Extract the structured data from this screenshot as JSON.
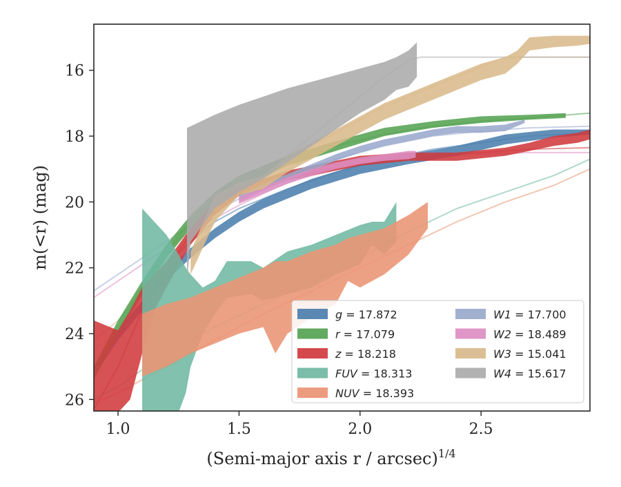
{
  "chart_data": {
    "type": "area",
    "xlabel": "(Semi-major axis r / arcsec)",
    "xlabel_exp": "1/4",
    "ylabel": "m(<r) (mag)",
    "xlim": [
      0.9,
      2.95
    ],
    "ylim": [
      26.35,
      14.6
    ],
    "y_inverted": true,
    "grid": false,
    "legend_position": "lower-right",
    "xticks": [
      1.0,
      1.5,
      2.0,
      2.5
    ],
    "xtick_labels": [
      "1.0",
      "1.5",
      "2.0",
      "2.5"
    ],
    "yticks": [
      16,
      18,
      20,
      22,
      24,
      26
    ],
    "ytick_labels": [
      "16",
      "18",
      "20",
      "22",
      "24",
      "26"
    ],
    "series": [
      {
        "name": "g = 17.872",
        "key": "g",
        "legend_var": "g",
        "legend_val": "17.872",
        "color": "#4c7fae",
        "band": [
          [
            0.9,
            25.3,
            25.0
          ],
          [
            1.0,
            24.2,
            23.9
          ],
          [
            1.1,
            23.3,
            23.0
          ],
          [
            1.2,
            22.4,
            22.1
          ],
          [
            1.3,
            21.7,
            21.4
          ],
          [
            1.4,
            21.1,
            20.8
          ],
          [
            1.5,
            20.6,
            20.3
          ],
          [
            1.6,
            20.2,
            19.9
          ],
          [
            1.8,
            19.6,
            19.3
          ],
          [
            2.0,
            19.15,
            18.85
          ],
          [
            2.2,
            18.85,
            18.55
          ],
          [
            2.4,
            18.6,
            18.3
          ],
          [
            2.6,
            18.25,
            17.95
          ],
          [
            2.8,
            18.05,
            17.8
          ],
          [
            2.95,
            17.95,
            17.8
          ]
        ],
        "model": [
          [
            0.9,
            25.2
          ],
          [
            1.0,
            24.0
          ],
          [
            1.1,
            22.8
          ],
          [
            1.2,
            21.9
          ],
          [
            1.3,
            21.2
          ],
          [
            1.4,
            20.6
          ],
          [
            1.5,
            20.2
          ],
          [
            1.7,
            19.6
          ],
          [
            1.9,
            19.1
          ],
          [
            2.1,
            18.7
          ],
          [
            2.3,
            18.4
          ],
          [
            2.5,
            18.2
          ],
          [
            2.7,
            18.0
          ],
          [
            2.95,
            17.9
          ]
        ]
      },
      {
        "name": "r = 17.079",
        "key": "r",
        "legend_var": "r",
        "legend_val": "17.079",
        "color": "#55a352",
        "band": [
          [
            0.9,
            25.4,
            25.0
          ],
          [
            1.0,
            24.0,
            23.6
          ],
          [
            1.1,
            22.8,
            22.4
          ],
          [
            1.2,
            21.7,
            21.3
          ],
          [
            1.3,
            20.8,
            20.4
          ],
          [
            1.4,
            20.1,
            19.7
          ],
          [
            1.5,
            19.6,
            19.2
          ],
          [
            1.7,
            18.9,
            18.6
          ],
          [
            1.9,
            18.45,
            18.15
          ],
          [
            2.1,
            18.0,
            17.75
          ],
          [
            2.3,
            17.75,
            17.55
          ],
          [
            2.5,
            17.6,
            17.4
          ],
          [
            2.7,
            17.5,
            17.35
          ],
          [
            2.85,
            17.45,
            17.3
          ]
        ],
        "model": [
          [
            0.9,
            25.2
          ],
          [
            1.0,
            23.9
          ],
          [
            1.1,
            22.6
          ],
          [
            1.2,
            21.5
          ],
          [
            1.3,
            20.6
          ],
          [
            1.4,
            19.9
          ],
          [
            1.5,
            19.4
          ],
          [
            1.7,
            18.75
          ],
          [
            1.9,
            18.3
          ],
          [
            2.1,
            17.95
          ],
          [
            2.3,
            17.7
          ],
          [
            2.5,
            17.55
          ],
          [
            2.7,
            17.45
          ],
          [
            2.95,
            17.3
          ]
        ]
      },
      {
        "name": "z = 18.218",
        "key": "z",
        "legend_var": "z",
        "legend_val": "18.218",
        "color": "#d03a3e",
        "band": [
          [
            0.9,
            26.4,
            23.6
          ],
          [
            1.0,
            26.4,
            23.9
          ],
          [
            1.05,
            26.0,
            23.3
          ],
          [
            1.1,
            24.6,
            22.6
          ],
          [
            1.15,
            23.3,
            22.2
          ],
          [
            1.2,
            22.6,
            21.8
          ],
          [
            1.3,
            21.3,
            20.8
          ],
          [
            1.4,
            20.4,
            20.0
          ],
          [
            1.5,
            19.8,
            19.5
          ],
          [
            1.6,
            19.6,
            19.3
          ],
          [
            1.7,
            19.35,
            19.05
          ],
          [
            1.8,
            19.2,
            18.9
          ],
          [
            2.0,
            18.9,
            18.6
          ],
          [
            2.2,
            18.75,
            18.5
          ],
          [
            2.4,
            18.75,
            18.5
          ],
          [
            2.6,
            18.6,
            18.35
          ],
          [
            2.7,
            18.45,
            18.2
          ],
          [
            2.8,
            18.3,
            18.0
          ],
          [
            2.9,
            18.2,
            17.9
          ],
          [
            2.95,
            18.1,
            17.8
          ]
        ],
        "model": [
          [
            0.9,
            26.3
          ],
          [
            1.0,
            25.0
          ],
          [
            1.1,
            23.3
          ],
          [
            1.2,
            22.0
          ],
          [
            1.3,
            21.0
          ],
          [
            1.4,
            20.3
          ],
          [
            1.5,
            19.8
          ],
          [
            1.7,
            19.3
          ],
          [
            1.9,
            18.95
          ],
          [
            2.1,
            18.75
          ],
          [
            2.3,
            18.6
          ],
          [
            2.5,
            18.5
          ],
          [
            2.7,
            18.4
          ],
          [
            2.95,
            18.35
          ]
        ]
      },
      {
        "name": "FUV = 18.313",
        "key": "FUV",
        "legend_var": "FUV",
        "legend_val": "18.313",
        "color": "#6fb8a3",
        "band": [
          [
            1.1,
            26.4,
            20.2
          ],
          [
            1.2,
            26.4,
            21.0
          ],
          [
            1.25,
            26.4,
            21.6
          ],
          [
            1.28,
            25.8,
            22.0
          ],
          [
            1.3,
            25.0,
            22.2
          ],
          [
            1.35,
            24.0,
            22.6
          ],
          [
            1.4,
            23.4,
            22.4
          ],
          [
            1.45,
            22.9,
            21.8
          ],
          [
            1.55,
            22.8,
            21.8
          ],
          [
            1.6,
            23.0,
            22.0
          ],
          [
            1.7,
            22.8,
            21.5
          ],
          [
            1.8,
            22.6,
            21.3
          ],
          [
            1.9,
            22.2,
            21.0
          ],
          [
            2.0,
            21.9,
            20.7
          ],
          [
            2.05,
            21.3,
            20.6
          ],
          [
            2.1,
            21.6,
            20.6
          ],
          [
            2.15,
            21.2,
            20.0
          ]
        ],
        "model": [
          [
            0.9,
            26.0
          ],
          [
            1.0,
            25.6
          ],
          [
            1.2,
            24.6
          ],
          [
            1.4,
            23.8
          ],
          [
            1.6,
            23.1
          ],
          [
            1.8,
            22.4
          ],
          [
            2.0,
            21.7
          ],
          [
            2.2,
            20.9
          ],
          [
            2.4,
            20.2
          ],
          [
            2.6,
            19.7
          ],
          [
            2.8,
            19.2
          ],
          [
            2.95,
            18.7
          ]
        ]
      },
      {
        "name": "NUV = 18.393",
        "key": "NUV",
        "legend_var": "NUV",
        "legend_val": "18.393",
        "color": "#ea9473",
        "band": [
          [
            1.1,
            25.3,
            23.4
          ],
          [
            1.2,
            25.0,
            23.1
          ],
          [
            1.3,
            24.6,
            22.9
          ],
          [
            1.4,
            24.3,
            22.6
          ],
          [
            1.5,
            24.0,
            22.3
          ],
          [
            1.6,
            23.8,
            22.0
          ],
          [
            1.65,
            24.6,
            21.8
          ],
          [
            1.7,
            24.0,
            21.8
          ],
          [
            1.8,
            23.5,
            21.5
          ],
          [
            1.9,
            23.1,
            21.3
          ],
          [
            1.95,
            22.4,
            21.1
          ],
          [
            2.0,
            22.6,
            21.0
          ],
          [
            2.1,
            22.2,
            20.8
          ],
          [
            2.2,
            21.6,
            20.4
          ],
          [
            2.28,
            20.8,
            20.0
          ]
        ],
        "model": [
          [
            0.9,
            26.1
          ],
          [
            1.0,
            25.8
          ],
          [
            1.2,
            25.0
          ],
          [
            1.4,
            24.2
          ],
          [
            1.6,
            23.4
          ],
          [
            1.8,
            22.7
          ],
          [
            2.0,
            22.0
          ],
          [
            2.2,
            21.3
          ],
          [
            2.4,
            20.6
          ],
          [
            2.6,
            20.0
          ],
          [
            2.8,
            19.5
          ],
          [
            2.95,
            19.0
          ]
        ]
      },
      {
        "name": "W1 = 17.700",
        "key": "W1",
        "legend_var": "W1",
        "legend_val": "17.700",
        "color": "#9aa9cc",
        "band": [
          [
            1.5,
            20.0,
            19.8
          ],
          [
            1.6,
            19.65,
            19.45
          ],
          [
            1.7,
            19.35,
            19.15
          ],
          [
            1.8,
            19.05,
            18.85
          ],
          [
            1.9,
            18.75,
            18.55
          ],
          [
            2.0,
            18.5,
            18.3
          ],
          [
            2.1,
            18.3,
            18.1
          ],
          [
            2.2,
            18.15,
            17.95
          ],
          [
            2.3,
            18.0,
            17.8
          ],
          [
            2.4,
            17.9,
            17.7
          ],
          [
            2.5,
            17.9,
            17.7
          ],
          [
            2.6,
            17.85,
            17.65
          ],
          [
            2.68,
            17.6,
            17.5
          ]
        ],
        "model": [
          [
            0.9,
            22.7
          ],
          [
            1.0,
            22.2
          ],
          [
            1.1,
            21.7
          ],
          [
            1.2,
            21.2
          ],
          [
            1.3,
            20.7
          ],
          [
            1.5,
            19.9
          ],
          [
            1.7,
            19.2
          ],
          [
            1.9,
            18.7
          ],
          [
            2.1,
            18.3
          ],
          [
            2.3,
            18.0
          ],
          [
            2.5,
            17.85
          ],
          [
            2.7,
            17.75
          ],
          [
            2.95,
            17.7
          ]
        ]
      },
      {
        "name": "W2 = 18.489",
        "key": "W2",
        "legend_var": "W2",
        "legend_val": "18.489",
        "color": "#dd8ec3",
        "band": [
          [
            1.5,
            20.05,
            19.85
          ],
          [
            1.6,
            19.75,
            19.55
          ],
          [
            1.7,
            19.45,
            19.25
          ],
          [
            1.8,
            19.2,
            19.0
          ],
          [
            1.9,
            19.0,
            18.8
          ],
          [
            2.0,
            18.85,
            18.65
          ],
          [
            2.1,
            18.75,
            18.55
          ],
          [
            2.2,
            18.7,
            18.45
          ],
          [
            2.23,
            18.65,
            18.45
          ]
        ],
        "model": [
          [
            0.9,
            22.9
          ],
          [
            1.0,
            22.4
          ],
          [
            1.1,
            21.9
          ],
          [
            1.2,
            21.4
          ],
          [
            1.3,
            20.9
          ],
          [
            1.5,
            20.1
          ],
          [
            1.7,
            19.4
          ],
          [
            1.9,
            19.0
          ],
          [
            2.1,
            18.75
          ],
          [
            2.3,
            18.6
          ],
          [
            2.5,
            18.55
          ],
          [
            2.7,
            18.5
          ],
          [
            2.95,
            18.5
          ]
        ]
      },
      {
        "name": "W3 = 15.041",
        "key": "W3",
        "legend_var": "W3",
        "legend_val": "15.041",
        "color": "#d9b98b",
        "band": [
          [
            1.3,
            22.2,
            21.5
          ],
          [
            1.4,
            20.6,
            19.8
          ],
          [
            1.5,
            19.8,
            19.4
          ],
          [
            1.6,
            19.6,
            19.2
          ],
          [
            1.7,
            19.1,
            18.6
          ],
          [
            1.8,
            18.7,
            18.2
          ],
          [
            1.9,
            18.3,
            17.8
          ],
          [
            2.0,
            17.9,
            17.4
          ],
          [
            2.1,
            17.5,
            17.0
          ],
          [
            2.2,
            17.2,
            16.7
          ],
          [
            2.3,
            16.9,
            16.4
          ],
          [
            2.4,
            16.6,
            16.1
          ],
          [
            2.5,
            16.3,
            15.8
          ],
          [
            2.6,
            16.1,
            15.6
          ],
          [
            2.65,
            15.8,
            15.4
          ],
          [
            2.7,
            15.4,
            15.0
          ],
          [
            2.8,
            15.3,
            14.95
          ],
          [
            2.9,
            15.25,
            14.95
          ],
          [
            2.95,
            15.2,
            14.95
          ]
        ],
        "model": [
          [
            0.9,
            24.2
          ],
          [
            1.0,
            23.6
          ],
          [
            1.1,
            22.7
          ],
          [
            1.2,
            21.6
          ],
          [
            1.3,
            20.7
          ],
          [
            1.4,
            20.0
          ],
          [
            1.5,
            19.5
          ],
          [
            1.7,
            18.7
          ],
          [
            1.9,
            17.9
          ],
          [
            2.1,
            17.1
          ],
          [
            2.3,
            16.5
          ],
          [
            2.5,
            15.9
          ],
          [
            2.6,
            15.6
          ],
          [
            2.95,
            15.6
          ]
        ]
      },
      {
        "name": "W4 = 15.617",
        "key": "W4",
        "legend_var": "W4",
        "legend_val": "15.617",
        "color": "#ababab",
        "band": [
          [
            1.285,
            22.4,
            17.75
          ],
          [
            1.3,
            21.2,
            17.7
          ],
          [
            1.4,
            20.2,
            17.35
          ],
          [
            1.5,
            19.7,
            17.05
          ],
          [
            1.6,
            19.3,
            16.8
          ],
          [
            1.7,
            18.8,
            16.55
          ],
          [
            1.8,
            18.3,
            16.35
          ],
          [
            1.9,
            17.8,
            16.15
          ],
          [
            2.0,
            17.3,
            15.95
          ],
          [
            2.1,
            16.9,
            15.75
          ],
          [
            2.15,
            16.6,
            15.6
          ],
          [
            2.2,
            16.5,
            15.4
          ],
          [
            2.235,
            16.2,
            15.15
          ]
        ],
        "model": [
          [
            1.5,
            19.8
          ],
          [
            1.6,
            19.2
          ],
          [
            1.7,
            18.6
          ],
          [
            1.8,
            18.0
          ],
          [
            1.9,
            17.4
          ],
          [
            2.0,
            16.8
          ],
          [
            2.1,
            16.2
          ],
          [
            2.2,
            15.7
          ],
          [
            2.25,
            15.6
          ],
          [
            2.95,
            15.6
          ]
        ]
      }
    ]
  }
}
